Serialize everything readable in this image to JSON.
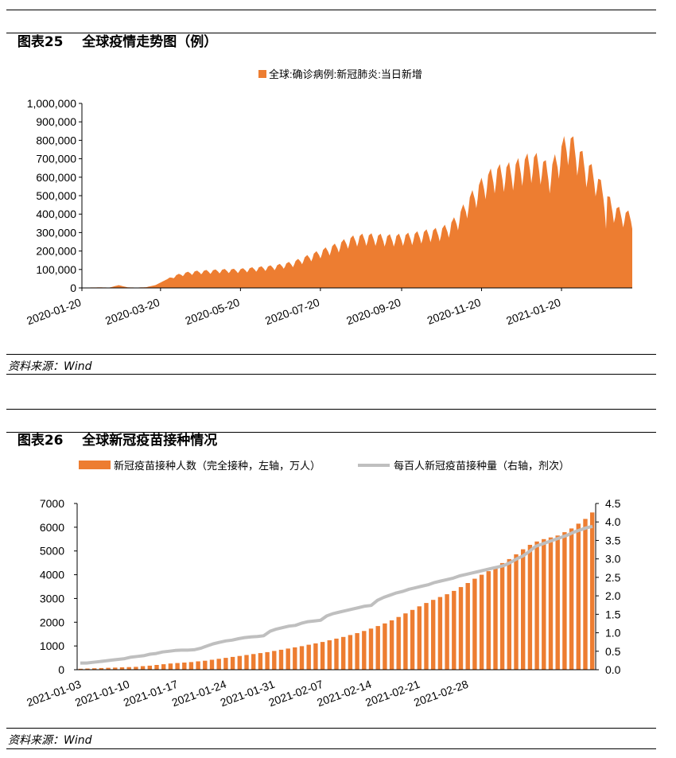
{
  "figures": [
    {
      "label": "图表25",
      "title": "全球疫情走势图（例）",
      "source": "资料来源：Wind"
    },
    {
      "label": "图表26",
      "title": "全球新冠疫苗接种情况",
      "source": "资料来源：Wind"
    }
  ],
  "colors": {
    "orange": "#ED7D31",
    "gray": "#BFBFBF",
    "axis": "#000000"
  },
  "chart_data": [
    {
      "type": "area",
      "title": "",
      "legend": [
        "全球:确诊病例:新冠肺炎:当日新增"
      ],
      "legend_position": "top-center",
      "ylim": [
        0,
        1000000
      ],
      "yticks": [
        "1,000,000",
        "900,000",
        "800,000",
        "700,000",
        "600,000",
        "500,000",
        "400,000",
        "300,000",
        "200,000",
        "100,000",
        "0"
      ],
      "xticks": [
        "2020-01-20",
        "2020-03-20",
        "2020-05-20",
        "2020-07-20",
        "2020-09-20",
        "2020-11-20",
        "2021-01-20"
      ],
      "x_start": "2020-01-20",
      "x_end": "2021-03-14",
      "weekly_points": [
        {
          "week": 0,
          "value": 1000
        },
        {
          "week": 1,
          "value": 2500
        },
        {
          "week": 2,
          "value": 3000
        },
        {
          "week": 3,
          "value": 2000
        },
        {
          "week": 4,
          "value": 15000
        },
        {
          "week": 5,
          "value": 3000
        },
        {
          "week": 6,
          "value": 2000
        },
        {
          "week": 7,
          "value": 4000
        },
        {
          "week": 8,
          "value": 15000
        },
        {
          "week": 9,
          "value": 40000
        },
        {
          "week": 10,
          "value": 65000
        },
        {
          "week": 11,
          "value": 80000
        },
        {
          "week": 12,
          "value": 88000
        },
        {
          "week": 13,
          "value": 92000
        },
        {
          "week": 14,
          "value": 95000
        },
        {
          "week": 15,
          "value": 98000
        },
        {
          "week": 16,
          "value": 100000
        },
        {
          "week": 17,
          "value": 100000
        },
        {
          "week": 18,
          "value": 105000
        },
        {
          "week": 19,
          "value": 110000
        },
        {
          "week": 20,
          "value": 115000
        },
        {
          "week": 21,
          "value": 120000
        },
        {
          "week": 22,
          "value": 130000
        },
        {
          "week": 23,
          "value": 140000
        },
        {
          "week": 24,
          "value": 160000
        },
        {
          "week": 25,
          "value": 180000
        },
        {
          "week": 26,
          "value": 200000
        },
        {
          "week": 27,
          "value": 220000
        },
        {
          "week": 28,
          "value": 240000
        },
        {
          "week": 29,
          "value": 265000
        },
        {
          "week": 30,
          "value": 280000
        },
        {
          "week": 31,
          "value": 285000
        },
        {
          "week": 32,
          "value": 285000
        },
        {
          "week": 33,
          "value": 280000
        },
        {
          "week": 34,
          "value": 280000
        },
        {
          "week": 35,
          "value": 285000
        },
        {
          "week": 36,
          "value": 290000
        },
        {
          "week": 37,
          "value": 300000
        },
        {
          "week": 38,
          "value": 310000
        },
        {
          "week": 39,
          "value": 315000
        },
        {
          "week": 40,
          "value": 340000
        },
        {
          "week": 41,
          "value": 390000
        },
        {
          "week": 42,
          "value": 470000
        },
        {
          "week": 43,
          "value": 540000
        },
        {
          "week": 44,
          "value": 600000
        },
        {
          "week": 45,
          "value": 640000
        },
        {
          "week": 46,
          "value": 650000
        },
        {
          "week": 47,
          "value": 660000
        },
        {
          "week": 48,
          "value": 690000
        },
        {
          "week": 49,
          "value": 710000
        },
        {
          "week": 50,
          "value": 700000
        },
        {
          "week": 51,
          "value": 640000
        },
        {
          "week": 52,
          "value": 740000
        },
        {
          "week": 53,
          "value": 830000
        },
        {
          "week": 54,
          "value": 760000
        },
        {
          "week": 55,
          "value": 680000
        },
        {
          "week": 56,
          "value": 620000
        },
        {
          "week": 57,
          "value": 520000
        },
        {
          "week": 58,
          "value": 440000
        },
        {
          "week": 59,
          "value": 410000
        },
        {
          "week": 60,
          "value": 400000
        },
        {
          "week": 61,
          "value": 430000
        },
        {
          "week": 62,
          "value": 440000
        }
      ]
    },
    {
      "type": "bar+line",
      "legend": [
        "新冠疫苗接种人数（完全接种，左轴，万人）",
        "每百人新冠疫苗接种量（右轴，剂次）"
      ],
      "legend_position": "top-center",
      "ylim_left": [
        0,
        7000
      ],
      "ylim_right": [
        0,
        4.5
      ],
      "yticks_left": [
        "7000",
        "6000",
        "5000",
        "4000",
        "3000",
        "2000",
        "1000",
        "0"
      ],
      "yticks_right": [
        "4.5",
        "4.0",
        "3.5",
        "3.0",
        "2.5",
        "2.0",
        "1.5",
        "1.0",
        "0.5",
        "0.0"
      ],
      "xticks": [
        "2021-01-03",
        "2021-01-10",
        "2021-01-17",
        "2021-01-24",
        "2021-01-31",
        "2021-02-07",
        "2021-02-14",
        "2021-02-21",
        "2021-02-28"
      ],
      "series": [
        {
          "name": "新冠疫苗接种人数（完全接种，左轴，万人）",
          "kind": "bar",
          "values": [
            40,
            50,
            60,
            70,
            80,
            90,
            100,
            110,
            120,
            150,
            170,
            200,
            230,
            260,
            280,
            300,
            320,
            350,
            380,
            420,
            460,
            500,
            540,
            580,
            620,
            660,
            700,
            740,
            790,
            840,
            890,
            940,
            990,
            1050,
            1110,
            1170,
            1240,
            1310,
            1380,
            1460,
            1540,
            1630,
            1730,
            1840,
            1950,
            2080,
            2220,
            2370,
            2520,
            2670,
            2810,
            2940,
            3060,
            3180,
            3320,
            3480,
            3650,
            3830,
            4000,
            4150,
            4310,
            4490,
            4660,
            4860,
            5070,
            5260,
            5400,
            5500,
            5570,
            5650,
            5790,
            5950,
            6150,
            6350,
            6620
          ]
        },
        {
          "name": "每百人新冠疫苗接种量（右轴，剂次）",
          "kind": "line",
          "values": [
            0.18,
            0.18,
            0.2,
            0.22,
            0.24,
            0.26,
            0.28,
            0.3,
            0.34,
            0.36,
            0.38,
            0.42,
            0.44,
            0.48,
            0.5,
            0.52,
            0.53,
            0.53,
            0.54,
            0.58,
            0.64,
            0.7,
            0.74,
            0.78,
            0.8,
            0.84,
            0.87,
            0.89,
            0.9,
            0.92,
            1.04,
            1.1,
            1.14,
            1.18,
            1.2,
            1.26,
            1.3,
            1.32,
            1.34,
            1.46,
            1.52,
            1.56,
            1.6,
            1.64,
            1.68,
            1.72,
            1.74,
            1.88,
            1.96,
            2.02,
            2.08,
            2.12,
            2.18,
            2.22,
            2.26,
            2.3,
            2.36,
            2.4,
            2.44,
            2.48,
            2.54,
            2.58,
            2.62,
            2.66,
            2.7,
            2.74,
            2.78,
            2.82,
            2.9,
            3.0,
            3.08,
            3.2,
            3.34,
            3.4,
            3.46,
            3.52,
            3.58,
            3.64,
            3.72,
            3.78,
            3.84,
            3.88
          ]
        }
      ]
    }
  ]
}
